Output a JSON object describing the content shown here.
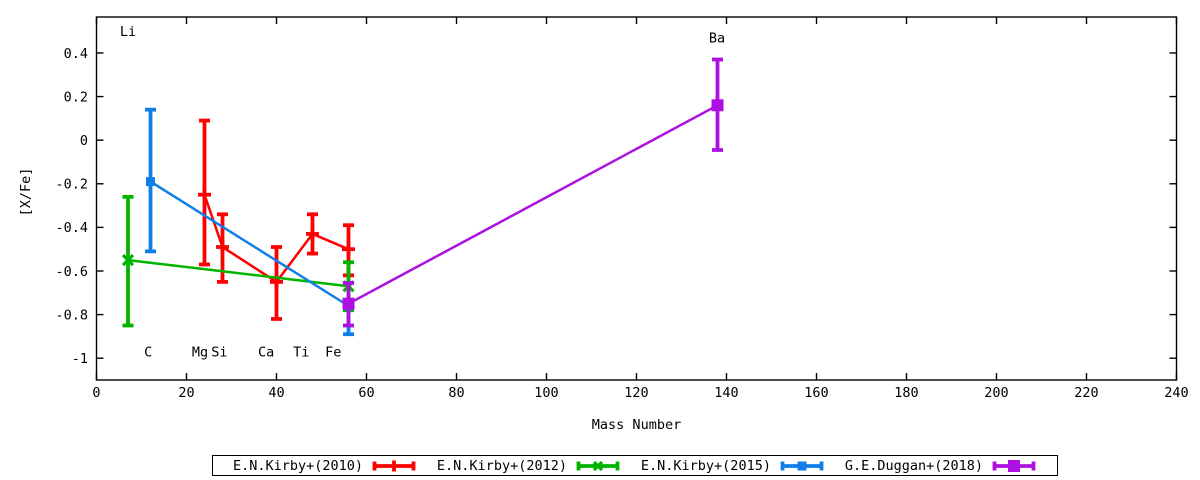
{
  "chart_data": {
    "type": "line+errorbar",
    "title": "",
    "xlabel": "Mass Number",
    "ylabel": "[X/Fe]",
    "xlim": [
      0,
      240
    ],
    "ylim": [
      -1.1,
      0.565
    ],
    "grid": false,
    "legend_position": "bottom-outside",
    "x_ticks": {
      "values": [
        0,
        20,
        40,
        60,
        80,
        100,
        120,
        140,
        160,
        180,
        200,
        220,
        240
      ],
      "labels": [
        "0",
        "20",
        "40",
        "60",
        "80",
        "100",
        "120",
        "140",
        "160",
        "180",
        "200",
        "220",
        "240"
      ]
    },
    "y_ticks": {
      "values": [
        0.4,
        0.2,
        0,
        -0.2,
        -0.4,
        -0.6,
        -0.8,
        -1
      ],
      "labels": [
        "0.4",
        "0.2",
        "0",
        "-0.2",
        "-0.4",
        "-0.6",
        "-0.8",
        "-1"
      ]
    },
    "series": [
      {
        "name": "E.N.Kirby+(2010)",
        "color": "#ff0000",
        "marker": "plus",
        "marker_size": 6.5,
        "points": [
          {
            "element": "Mg",
            "x": 24,
            "y": -0.25,
            "ylow": -0.57,
            "yhigh": 0.09
          },
          {
            "element": "Si",
            "x": 28,
            "y": -0.49,
            "ylow": -0.65,
            "yhigh": -0.34
          },
          {
            "element": "Ca",
            "x": 40,
            "y": -0.65,
            "ylow": -0.82,
            "yhigh": -0.49
          },
          {
            "element": "Ti",
            "x": 48,
            "y": -0.43,
            "ylow": -0.52,
            "yhigh": -0.34
          },
          {
            "element": "Fe",
            "x": 56,
            "y": -0.5,
            "ylow": -0.62,
            "yhigh": -0.39
          }
        ]
      },
      {
        "name": "E.N.Kirby+(2012)",
        "color": "#00b400",
        "marker": "cross",
        "marker_size": 5,
        "points": [
          {
            "element": "Li",
            "x": 7,
            "y": -0.55,
            "ylow": -0.85,
            "yhigh": -0.26
          },
          {
            "element": "Fe",
            "x": 56,
            "y": -0.67,
            "ylow": -0.78,
            "yhigh": -0.56
          }
        ]
      },
      {
        "name": "E.N.Kirby+(2015)",
        "color": "#0e7fe8",
        "marker": "square",
        "marker_size": 4.5,
        "points": [
          {
            "element": "C",
            "x": 12,
            "y": -0.19,
            "ylow": -0.51,
            "yhigh": 0.14
          },
          {
            "element": "Fe",
            "x": 56,
            "y": -0.76,
            "ylow": -0.89,
            "yhigh": -0.74
          }
        ]
      },
      {
        "name": "G.E.Duggan+(2018)",
        "color": "#ad10e0",
        "marker": "square",
        "marker_size": 6,
        "points": [
          {
            "element": "Fe",
            "x": 56,
            "y": -0.75,
            "ylow": -0.85,
            "yhigh": -0.655
          },
          {
            "element": "Ba",
            "x": 138,
            "y": 0.16,
            "ylow": -0.045,
            "yhigh": 0.37
          }
        ]
      }
    ],
    "element_labels": [
      {
        "text": "Li",
        "x": 7.0,
        "y": 0.5
      },
      {
        "text": "C",
        "x": 11.5,
        "y": -0.97
      },
      {
        "text": "Mg",
        "x": 23.0,
        "y": -0.97
      },
      {
        "text": "Si",
        "x": 27.3,
        "y": -0.97
      },
      {
        "text": "Ca",
        "x": 37.7,
        "y": -0.97
      },
      {
        "text": "Ti",
        "x": 45.5,
        "y": -0.97
      },
      {
        "text": "Fe",
        "x": 52.6,
        "y": -0.97
      },
      {
        "text": "Ba",
        "x": 137.9,
        "y": 0.47
      }
    ],
    "legend_entries": [
      "E.N.Kirby+(2010)",
      "E.N.Kirby+(2012)",
      "E.N.Kirby+(2015)",
      "G.E.Duggan+(2018)"
    ]
  }
}
